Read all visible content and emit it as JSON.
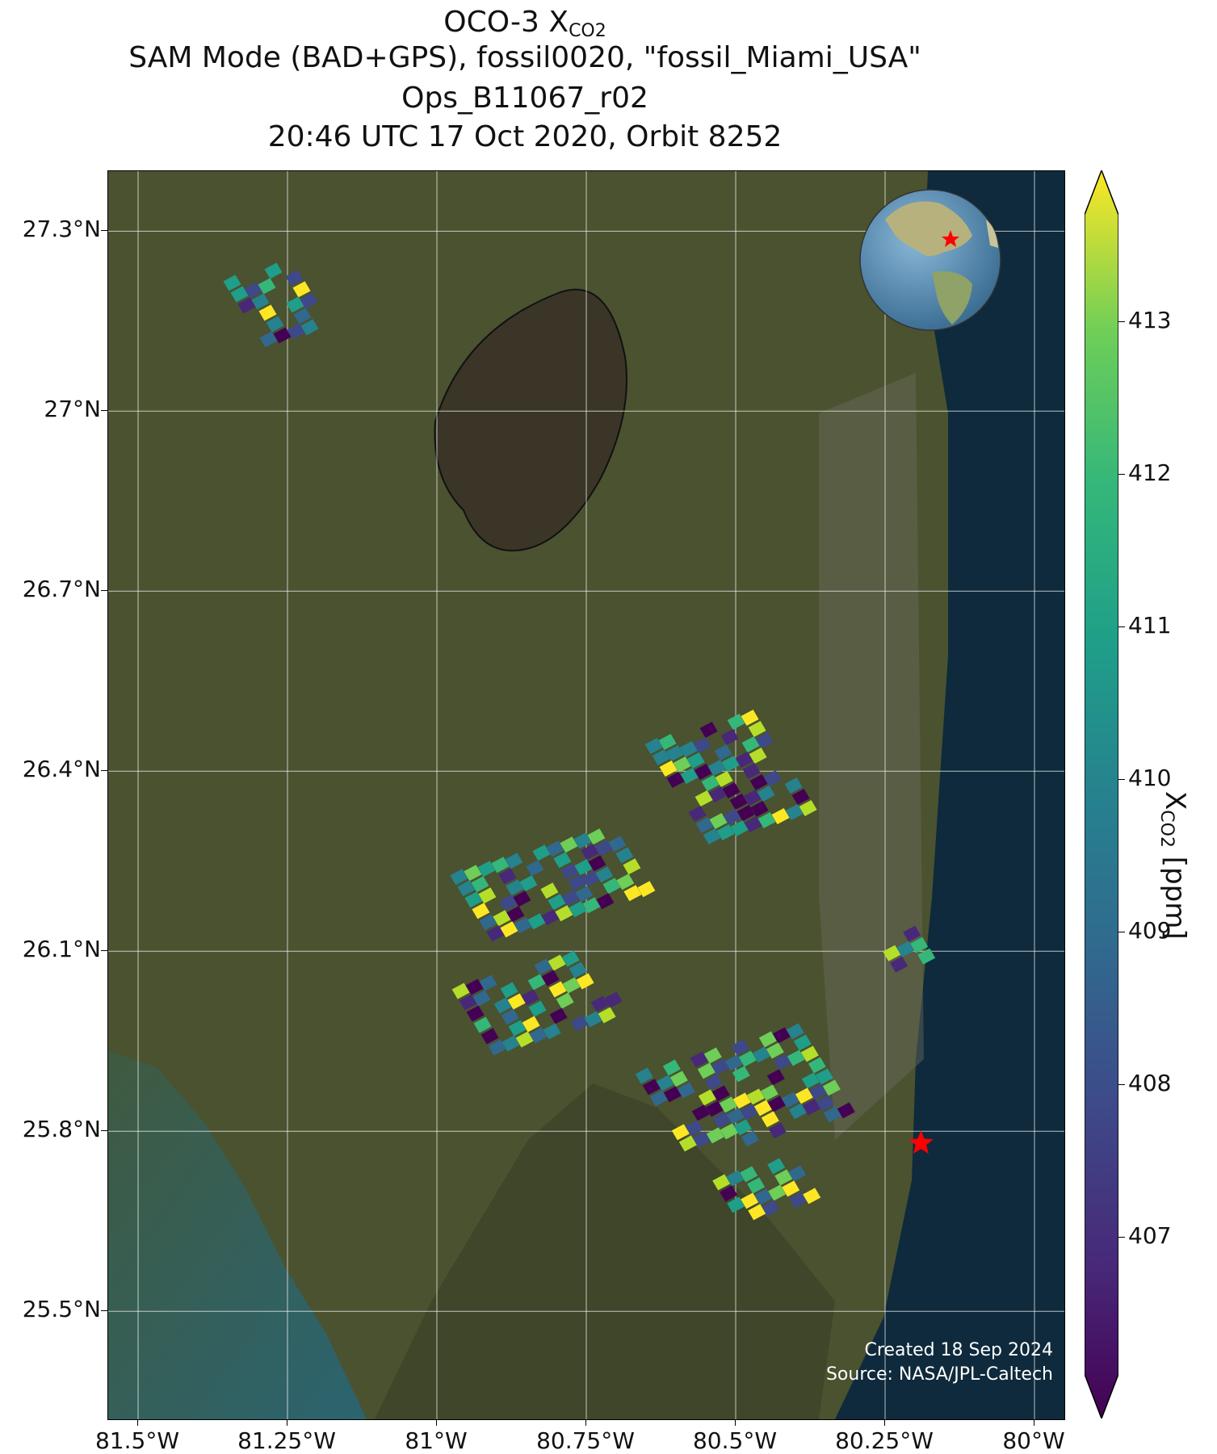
{
  "title": {
    "line1_prefix": "OCO-3 X",
    "line1_sub": "CO2",
    "line2": "SAM Mode (BAD+GPS), fossil0020, \"fossil_Miami_USA\"",
    "line3": "Ops_B11067_r02",
    "line4": "20:46 UTC 17 Oct 2020, Orbit 8252"
  },
  "map": {
    "lat_ticks": [
      "27.3°N",
      "27°N",
      "26.7°N",
      "26.4°N",
      "26.1°N",
      "25.8°N",
      "25.5°N"
    ],
    "lat_values": [
      27.3,
      27.0,
      26.7,
      26.4,
      26.1,
      25.8,
      25.5
    ],
    "lon_ticks": [
      "81.5°W",
      "81.25°W",
      "81°W",
      "80.75°W",
      "80.5°W",
      "80.25°W",
      "80°W"
    ],
    "lon_values": [
      -81.5,
      -81.25,
      -81.0,
      -80.75,
      -80.5,
      -80.25,
      -80.0
    ],
    "extent": {
      "lon_min": -81.55,
      "lon_max": -79.95,
      "lat_min": 25.32,
      "lat_max": 27.4
    },
    "target_marker": {
      "name": "fossil_Miami_USA",
      "lon": -80.19,
      "lat": 25.78,
      "color": "#ff0000"
    },
    "credit_line1": "Created 18 Sep 2024",
    "credit_line2": "Source: NASA/JPL-Caltech",
    "inset_globe": "globe-americas"
  },
  "colorbar": {
    "ticks": [
      "407",
      "408",
      "409",
      "410",
      "411",
      "412",
      "413"
    ],
    "tick_values": [
      407,
      408,
      409,
      410,
      411,
      412,
      413
    ],
    "min": 406.1,
    "max": 413.7,
    "label_prefix": "X",
    "label_sub": "CO2",
    "label_suffix": " [ppm]",
    "colormap": "viridis",
    "extend": "both"
  },
  "colors": {
    "land": "#4a5230",
    "ocean": "#0e2a3c",
    "lake": "#3a3527",
    "grid": "#ffffff"
  }
}
